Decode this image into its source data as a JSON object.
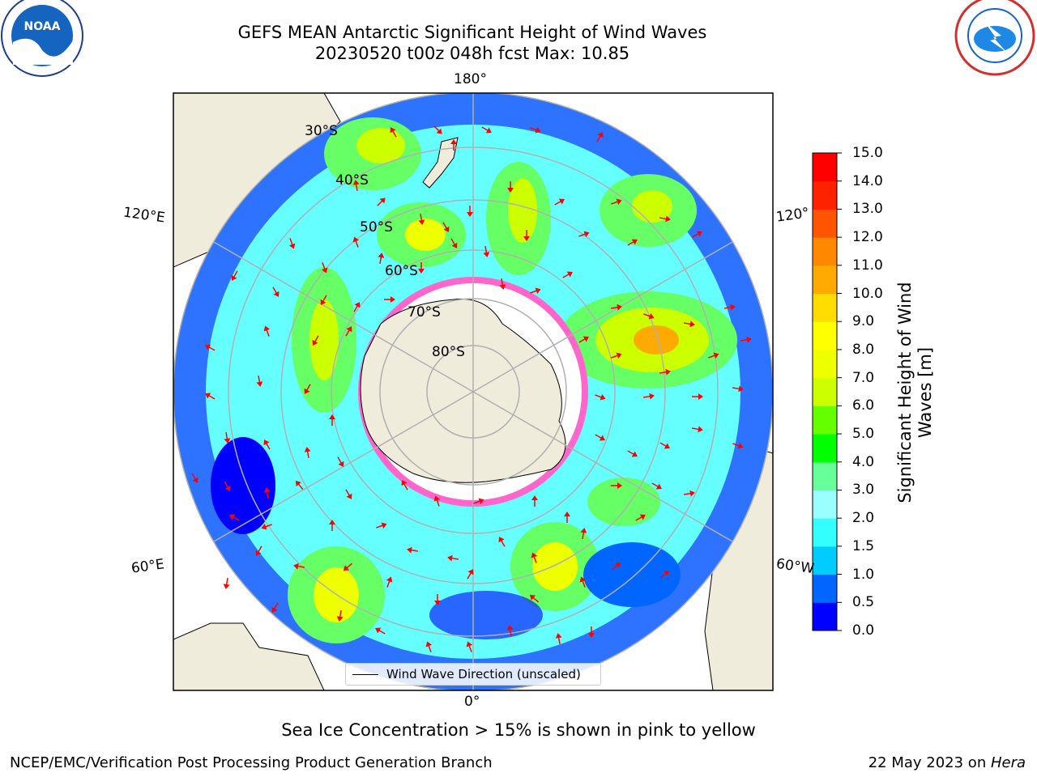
{
  "title_line1": "GEFS MEAN Antarctic Significant Height of Wind Waves",
  "title_line2": "20230520 t00z 048h fcst   Max: 10.85",
  "longitude_labels": {
    "top": "180°",
    "bottom": "0°",
    "left_upper": "120°E",
    "left_lower": "60°E",
    "right_upper": "120°",
    "right_lower": "60°W"
  },
  "latitude_labels": [
    "30°S",
    "40°S",
    "50°S",
    "60°S",
    "70°S",
    "80°S"
  ],
  "legend_text": "Wind Wave Direction (unscaled)",
  "colorbar": {
    "label": "Significant Height of Wind Waves [m]",
    "ticks": [
      "0.0",
      "0.5",
      "1.0",
      "1.5",
      "2.0",
      "3.0",
      "4.0",
      "5.0",
      "6.0",
      "7.0",
      "8.0",
      "9.0",
      "10.0",
      "11.0",
      "12.0",
      "13.0",
      "14.0",
      "15.0"
    ],
    "colors": [
      "#0000ff",
      "#0066ff",
      "#00ccff",
      "#33ffff",
      "#99ffff",
      "#66ff99",
      "#00ff00",
      "#66ff00",
      "#ccff00",
      "#eeff00",
      "#ffff00",
      "#ffdd00",
      "#ffaa00",
      "#ff8800",
      "#ff5500",
      "#ff2200",
      "#ff0000"
    ]
  },
  "note": "Sea Ice Concentration > 15% is shown in pink to yellow",
  "footer_left": "NCEP/EMC/Verification Post Processing Product Generation Branch",
  "footer_right_prefix": "22 May 2023 on ",
  "footer_right_machine": "Hera",
  "logo_left": "NOAA",
  "logo_right": "NATIONAL WEATHER SERVICE",
  "colors": {
    "land": "#efecdc",
    "ice": "#ff66cc",
    "arrow": "#ff0000",
    "grid": "#b0b0b0"
  }
}
